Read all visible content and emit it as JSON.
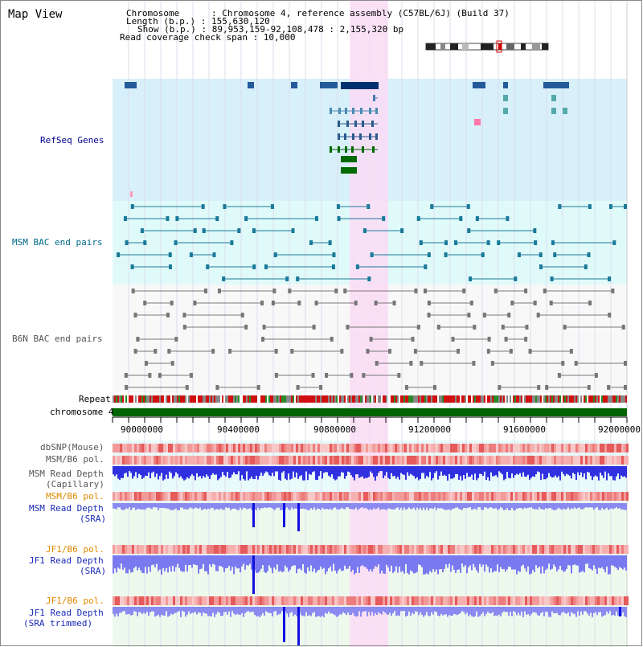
{
  "page_title": "Map View",
  "info": {
    "chromosome": "Chromosome      : Chromosome 4, reference assembly (C57BL/6J) (Build 37)",
    "length": "Length (b.p.) : 155,630,120",
    "show": "Show (b.p.) : 89,953,159-92,108,478 : 2,155,320 bp",
    "coverage": "Read coverage check span : 10,000"
  },
  "tracks": {
    "refseq": "RefSeq Genes",
    "msm_bac": "MSM BAC end pairs",
    "b6n_bac": "B6N BAC end pairs",
    "repeat": "Repeat",
    "chromosome": "chromosome 4",
    "dbsnp": "dbSNP(Mouse)",
    "msm_b6_pol_1": "MSM/B6 pol.",
    "msm_depth_cap_1": "MSM Read Depth",
    "msm_depth_cap_2": "(Capillary)",
    "msm_b6_pol_2": "MSM/B6 pol.",
    "msm_depth_sra_1": "MSM Read Depth",
    "msm_depth_sra_2": "(SRA)",
    "jf1_b6_pol_1": "JF1/B6 pol.",
    "jf1_depth_sra_1": "JF1 Read Depth",
    "jf1_depth_sra_2": "(SRA)",
    "jf1_b6_pol_2": "JF1/B6 pol.",
    "jf1_depth_trim_1": "JF1 Read Depth",
    "jf1_depth_trim_2": "(SRA trimmed)"
  },
  "axis_ticks": [
    "90000000",
    "90400000",
    "90800000",
    "91200000",
    "91600000",
    "92000000"
  ],
  "colors": {
    "refseq_bg": "#d8f0fa",
    "msm_bg": "#e0fafa",
    "highlight": "#fadcf5",
    "refseq_label": "#00008b",
    "msm_label": "#006a8a",
    "b6n_label": "#555555",
    "orange_label": "#e08a00",
    "blue_label": "#1a2ab8",
    "gene_dark": "#003070",
    "gene_green": "#006a00",
    "chrom_green": "#006400"
  }
}
